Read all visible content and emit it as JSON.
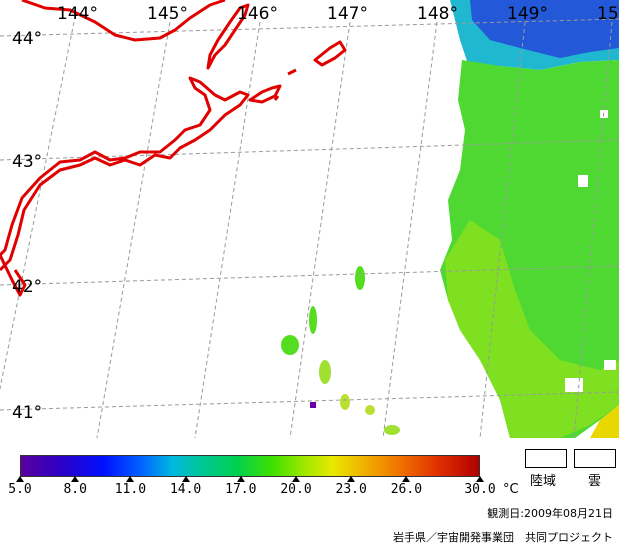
{
  "map": {
    "longitude_labels": [
      "144°",
      "145°",
      "146°",
      "147°",
      "148°",
      "149°",
      "15"
    ],
    "latitude_labels": [
      "44°",
      "43°",
      "42°",
      "41°"
    ]
  },
  "legend": {
    "ticks": [
      {
        "label": "5.0",
        "value": 5.0
      },
      {
        "label": "8.0",
        "value": 8.0
      },
      {
        "label": "11.0",
        "value": 11.0
      },
      {
        "label": "14.0",
        "value": 14.0
      },
      {
        "label": "17.0",
        "value": 17.0
      },
      {
        "label": "20.0",
        "value": 20.0
      },
      {
        "label": "23.0",
        "value": 23.0
      },
      {
        "label": "26.0",
        "value": 26.0
      },
      {
        "label": "30.0",
        "value": 30.0
      }
    ],
    "unit": "°C",
    "land_label": "陸域",
    "cloud_label": "雲"
  },
  "observation_date": "観測日:2009年08月21日",
  "credit": "岩手県／宇宙開発事業団　共同プロジェクト",
  "colors": {
    "coastline": "#e00000",
    "grid": "#9a9a9a",
    "sst_green": "#55dd20",
    "sst_blue": "#1a4fd0",
    "sst_yellow": "#e8e000",
    "sst_cyan": "#20c8c0"
  }
}
